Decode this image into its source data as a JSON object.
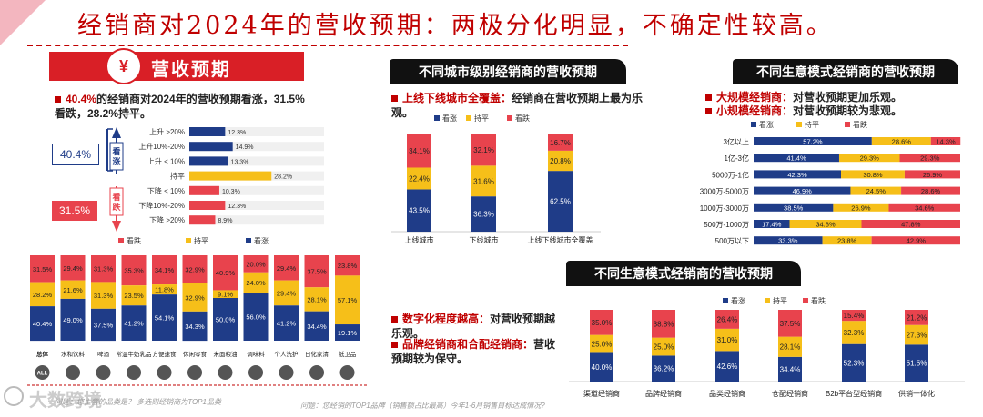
{
  "title": "经销商对2024年的营收预期：两极分化明显，不确定性较高。",
  "left": {
    "section_title": "营收预期",
    "section_icon": "money-bag-icon",
    "summary_red": "40.4%",
    "summary_rest": "的经销商对2024年的营收预期看涨，31.5%看跌，28.2%持平。",
    "up_total": "40.4%",
    "down_total": "31.5%",
    "up_label": "看涨",
    "down_label": "看跌"
  },
  "bar_top": {
    "title": "不同城市级别经销商的营收预期",
    "note_red": "上线下线城市全覆盖：",
    "note_rest": "经销商在营收预期上最为乐观。"
  },
  "bar_right": {
    "title": "不同生意模式经销商的营收预期",
    "note1_red": "大规模经销商：",
    "note1_rest": "对营收预期更加乐观。",
    "note2_red": "小规模经销商：",
    "note2_rest": "对营收预期较为悲观。"
  },
  "bar_bottom": {
    "title": "不同生意模式经销商的营收预期",
    "note1_red": "数字化程度越高：",
    "note1_rest": "对营收预期越乐观。",
    "note2_red": "品牌经销商和合配经销商：",
    "note2_rest": "营收预期较为保守。"
  },
  "footer": {
    "watermark": "大数跨境",
    "note_left": "问题：您主营的品类是？    多选则经销商为TOP1品类",
    "note_mid": "问题：您经销的TOP1品牌（销售额占比最高）今年1-6月销售目标达成情况?"
  },
  "colors": {
    "up": "#1f3c88",
    "flat": "#f6bf19",
    "down": "#e8434d",
    "red": "#c00000",
    "black": "#111111"
  },
  "chart_data": [
    {
      "type": "bar",
      "orientation": "horizontal",
      "categories": [
        "上升 >20%",
        "上升10%-20%",
        "上升 < 10%",
        "持平",
        "下降 < 10%",
        "下降10%-20%",
        "下降 >20%"
      ],
      "values": [
        12.3,
        14.9,
        13.3,
        28.2,
        10.3,
        12.3,
        8.9
      ],
      "value_labels": [
        "12.3%",
        "14.9%",
        "13.3%",
        "28.2%",
        "10.3%",
        "12.3%",
        "8.9%"
      ],
      "groups": [
        "看涨",
        "看涨",
        "看涨",
        "持平",
        "看跌",
        "看跌",
        "看跌"
      ]
    },
    {
      "type": "bar",
      "stacked": true,
      "categories": [
        "总体",
        "水和饮料",
        "啤酒",
        "常温牛奶乳品",
        "方便速食",
        "休闲零食",
        "米面粮油",
        "调味料",
        "个人洗护",
        "日化家清",
        "纸卫品"
      ],
      "legend": [
        "看跌",
        "持平",
        "看涨"
      ],
      "legend_placement": "top",
      "series": [
        {
          "name": "看涨",
          "values": [
            40.4,
            49.0,
            37.5,
            41.2,
            54.1,
            34.3,
            50.0,
            56.0,
            41.2,
            34.4,
            19.1
          ]
        },
        {
          "name": "持平",
          "values": [
            28.2,
            21.6,
            31.3,
            23.5,
            11.8,
            32.9,
            9.1,
            24.0,
            29.4,
            28.1,
            57.1
          ]
        },
        {
          "name": "看跌",
          "values": [
            31.5,
            29.4,
            31.3,
            35.3,
            34.1,
            32.9,
            40.9,
            20.0,
            29.4,
            37.5,
            23.8
          ]
        }
      ],
      "labels": {
        "看涨": [
          "40.4%",
          "49.0%",
          "37.5%",
          "41.2%",
          "54.1%",
          "34.3%",
          "50.0%",
          "56.0%",
          "41.2%",
          "34.4%",
          "19.1%"
        ],
        "持平": [
          "28.2%",
          "21.6%",
          "31.3%",
          "23.5%",
          "11.8%",
          "32.9%",
          "9.1%",
          "24.0%",
          "29.4%",
          "28.1%",
          "57.1%"
        ],
        "看跌": [
          "31.5%",
          "29.4%",
          "31.3%",
          "35.3%",
          "34.1%",
          "32.9%",
          "40.9%",
          "20.0%",
          "29.4%",
          "37.5%",
          "23.8%"
        ]
      },
      "icons": [
        "all-icon",
        "bottle-icon",
        "beer-icon",
        "milk-icon",
        "noodle-bowl-icon",
        "snack-icon",
        "rice-bag-icon",
        "seasoning-icon",
        "shampoo-icon",
        "detergent-icon",
        "tissue-icon"
      ],
      "icon_text": {
        "all": "ALL"
      }
    },
    {
      "type": "bar",
      "stacked": true,
      "categories": [
        "上线城市",
        "下线城市",
        "上线下线城市全覆盖"
      ],
      "legend": [
        "看涨",
        "持平",
        "看跌"
      ],
      "legend_placement": "top-left",
      "series": [
        {
          "name": "看涨",
          "values": [
            43.5,
            36.3,
            62.5
          ]
        },
        {
          "name": "持平",
          "values": [
            22.4,
            31.6,
            20.8
          ]
        },
        {
          "name": "看跌",
          "values": [
            34.1,
            32.1,
            16.7
          ]
        }
      ],
      "labels": {
        "看涨": [
          "43.5%",
          "36.3%",
          "62.5%"
        ],
        "持平": [
          "22.4%",
          "31.6%",
          "20.8%"
        ],
        "看跌": [
          "34.1%",
          "32.1%",
          "16.7%"
        ]
      }
    },
    {
      "type": "bar",
      "stacked": true,
      "orientation": "horizontal",
      "categories": [
        "3亿以上",
        "1亿-3亿",
        "5000万-1亿",
        "3000万-5000万",
        "1000万-3000万",
        "500万-1000万",
        "500万以下"
      ],
      "legend": [
        "看涨",
        "持平",
        "看跌"
      ],
      "legend_placement": "top-left",
      "series": [
        {
          "name": "看涨",
          "values": [
            57.2,
            41.4,
            42.3,
            46.9,
            38.5,
            17.4,
            33.3
          ]
        },
        {
          "name": "持平",
          "values": [
            28.6,
            29.3,
            30.8,
            24.5,
            26.9,
            34.8,
            23.8
          ]
        },
        {
          "name": "看跌",
          "values": [
            14.3,
            29.3,
            26.9,
            28.6,
            34.6,
            47.8,
            42.9
          ]
        }
      ],
      "labels": {
        "看涨": [
          "57.2%",
          "41.4%",
          "42.3%",
          "46.9%",
          "38.5%",
          "17.4%",
          "33.3%"
        ],
        "持平": [
          "28.6%",
          "29.3%",
          "30.8%",
          "24.5%",
          "26.9%",
          "34.8%",
          "23.8%"
        ],
        "看跌": [
          "14.3%",
          "29.3%",
          "26.9%",
          "28.6%",
          "34.6%",
          "47.8%",
          "42.9%"
        ]
      }
    },
    {
      "type": "bar",
      "stacked": true,
      "categories": [
        "渠道经销商",
        "品牌经销商",
        "品类经销商",
        "仓配经销商",
        "B2b平台型经销商",
        "供销一体化"
      ],
      "legend": [
        "看涨",
        "持平",
        "看跌"
      ],
      "legend_placement": "top",
      "series": [
        {
          "name": "看涨",
          "values": [
            40.0,
            36.2,
            42.6,
            34.4,
            52.3,
            51.5
          ]
        },
        {
          "name": "持平",
          "values": [
            25.0,
            25.0,
            31.0,
            28.1,
            32.3,
            27.3
          ]
        },
        {
          "name": "看跌",
          "values": [
            35.0,
            38.8,
            26.4,
            37.5,
            15.4,
            21.2
          ]
        }
      ],
      "labels": {
        "看涨": [
          "40.0%",
          "36.2%",
          "42.6%",
          "34.4%",
          "52.3%",
          "51.5%"
        ],
        "持平": [
          "25.0%",
          "25.0%",
          "31.0%",
          "28.1%",
          "32.3%",
          "27.3%"
        ],
        "看跌": [
          "35.0%",
          "38.8%",
          "26.4%",
          "37.5%",
          "15.4%",
          "21.2%"
        ]
      }
    }
  ]
}
